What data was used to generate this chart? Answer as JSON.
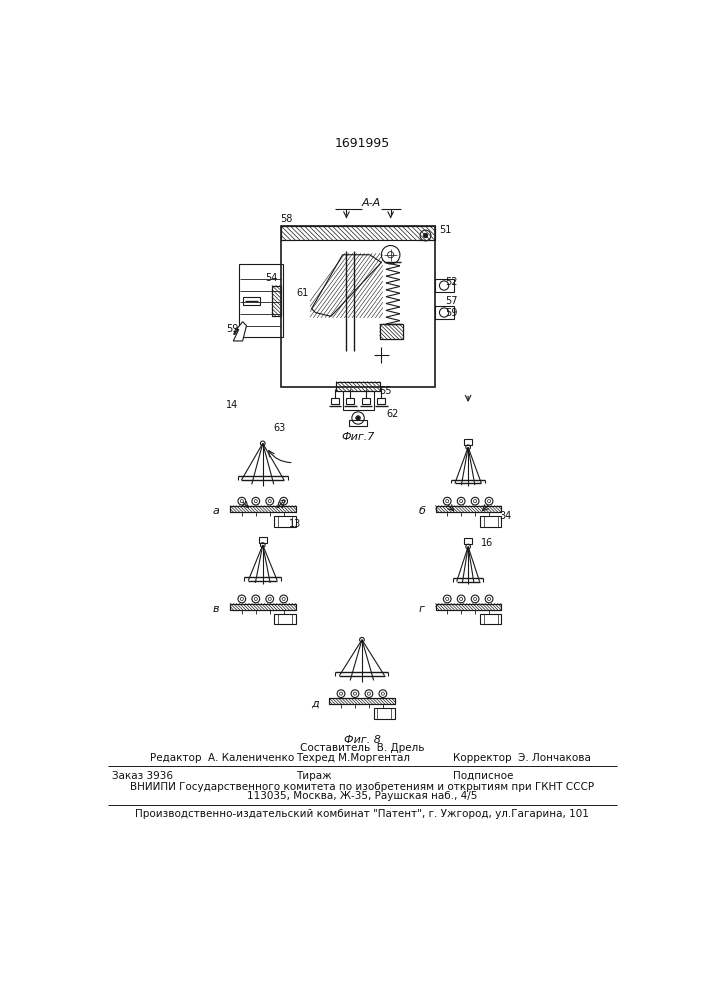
{
  "patent_number": "1691995",
  "fig7_label": "Фиг.7",
  "fig8_label": "Фиг. 8",
  "section_label": "А-А",
  "footer_sostavitel": "Составитель  В. Дрель",
  "footer_editor": "Редактор  А. Калениченко",
  "footer_techred": "Техред М.Моргентал",
  "footer_corrector": "Корректор  Э. Лончакова",
  "footer_order": "Заказ 3936",
  "footer_tirazh": "Тираж",
  "footer_podpisnoe": "Подписное",
  "footer_vniiipi": "ВНИИПИ Государственного комитета по изобретениям и открытиям при ГКНТ СССР",
  "footer_address": "113035, Москва, Ж-35, Раушская наб., 4/5",
  "footer_publisher": "Производственно-издательский комбинат \"Патент\", г. Ужгород, ул.Гагарина, 101",
  "bg_color": "#ffffff",
  "line_color": "#1a1a1a",
  "hatch_color": "#333333",
  "text_color": "#111111"
}
